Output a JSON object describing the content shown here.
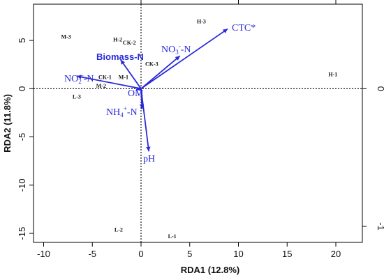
{
  "chart_data": {
    "type": "scatter",
    "subtype": "rda-biplot",
    "title": "",
    "xlabel": "RDA1 (12.8%)",
    "ylabel": "RDA2 (11.8%)",
    "xlim": [
      -10.5,
      22.5
    ],
    "ylim": [
      -16.2,
      8.7
    ],
    "x_ticks": [
      -10,
      -5,
      0,
      5,
      10,
      15,
      20
    ],
    "y_ticks": [
      -15,
      -10,
      -5,
      0,
      5
    ],
    "secondary_axes": {
      "top_ticks": [
        "",
        "",
        ""
      ],
      "right_ticks": [
        {
          "value": 0,
          "label": "0"
        },
        {
          "value": -1,
          "label": "-1"
        }
      ]
    },
    "reference_lines": {
      "x": 0,
      "y": 0,
      "style": "dotted"
    },
    "colors": {
      "vectors": "#2a2ad8",
      "sites": "#111111",
      "axes": "#000000"
    },
    "sites": [
      {
        "label": "H-3",
        "x": 6.2,
        "y": 7.0
      },
      {
        "label": "M-3",
        "x": -7.7,
        "y": 5.4
      },
      {
        "label": "H-2",
        "x": -2.4,
        "y": 5.1
      },
      {
        "label": "CK-2",
        "x": -1.2,
        "y": 4.8
      },
      {
        "label": "CK-3",
        "x": 1.1,
        "y": 2.6
      },
      {
        "label": "CK-1",
        "x": -3.7,
        "y": 1.2
      },
      {
        "label": "M-1",
        "x": -1.8,
        "y": 1.2
      },
      {
        "label": "M-2",
        "x": -4.1,
        "y": 0.3
      },
      {
        "label": "L-3",
        "x": -6.6,
        "y": -0.8
      },
      {
        "label": "H-1",
        "x": 19.7,
        "y": 1.5
      },
      {
        "label": "L-2",
        "x": -2.3,
        "y": -14.6
      },
      {
        "label": "L-1",
        "x": 3.2,
        "y": -15.3
      }
    ],
    "vectors": [
      {
        "label": "CTC*",
        "x": 8.9,
        "y": 6.2
      },
      {
        "label": "NO3⁻-N",
        "x": 4.0,
        "y": 3.4
      },
      {
        "label": "Biomass-N",
        "x": -2.1,
        "y": 3.0
      },
      {
        "label": "NO2⁻-N",
        "x": -6.6,
        "y": 1.3
      },
      {
        "label": "OM",
        "x": -0.5,
        "y": -0.1
      },
      {
        "label": "NH4⁺-N",
        "x": 0.1,
        "y": -2.1
      },
      {
        "label": "pH",
        "x": 0.8,
        "y": -6.5
      }
    ]
  }
}
